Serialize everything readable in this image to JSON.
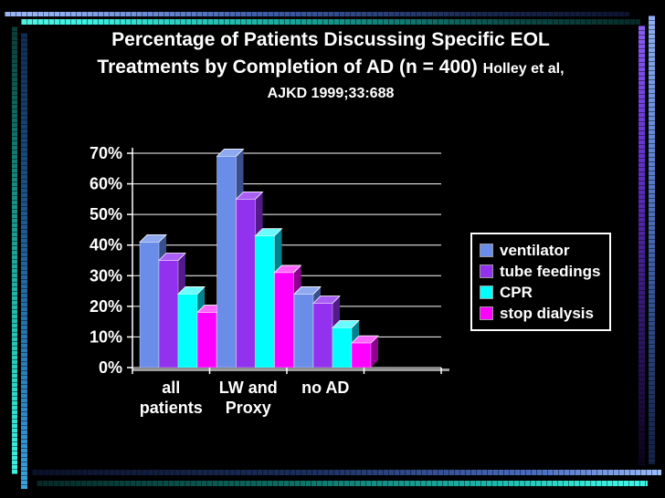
{
  "slide": {
    "title": {
      "line1": "Percentage of Patients Discussing Specific EOL",
      "line2_main": "Treatments by Completion of AD (n = 400)",
      "line2_citation": "Holley et al,",
      "line3_citation": "AJKD 1999;33:688"
    }
  },
  "chart_data": {
    "type": "bar",
    "title": "Percentage of Patients Discussing Specific EOL Treatments by Completion of AD (n = 400)",
    "xlabel": "",
    "ylabel": "",
    "ylim": [
      0,
      70
    ],
    "ytick_step": 10,
    "ytick_labels": [
      "0%",
      "10%",
      "20%",
      "30%",
      "40%",
      "50%",
      "60%",
      "70%"
    ],
    "grid": true,
    "legend_position": "right",
    "categories": [
      "all patients",
      "LW and Proxy",
      "no AD"
    ],
    "categories_display": [
      [
        "all",
        "patients"
      ],
      [
        "LW and",
        "Proxy"
      ],
      [
        "no AD"
      ]
    ],
    "series": [
      {
        "name": "ventilator",
        "color": "#6b8dea",
        "side": "#3a4f8e",
        "top": "#8ea9ef",
        "values": [
          41,
          69,
          24
        ]
      },
      {
        "name": "tube feedings",
        "color": "#9232ee",
        "side": "#531b8a",
        "top": "#a95ef4",
        "values": [
          35,
          55,
          21
        ]
      },
      {
        "name": "CPR",
        "color": "#00ffff",
        "side": "#00828f",
        "top": "#6bfbff",
        "values": [
          24,
          43,
          13
        ]
      },
      {
        "name": "stop dialysis",
        "color": "#ff00ff",
        "side": "#8f0090",
        "top": "#ff66ff",
        "values": [
          18,
          31,
          8
        ]
      }
    ]
  },
  "theme": {
    "accent_blue": "#8fb0f4",
    "accent_teal": "#3df2e2",
    "accent_purple": "#8a5cf5",
    "accent_steel": "#39a2de",
    "text_color": "#ffffff",
    "background": "#000000"
  }
}
